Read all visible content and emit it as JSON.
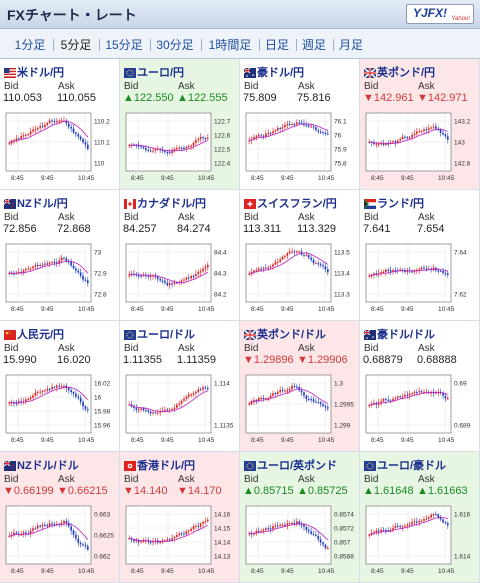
{
  "app": {
    "title": "FXチャート・レート",
    "logo": "YJFX!",
    "logo_sub": "Yahoo!"
  },
  "tabs": [
    {
      "label": "1分足",
      "active": false
    },
    {
      "label": "5分足",
      "active": true
    },
    {
      "label": "15分足",
      "active": false
    },
    {
      "label": "30分足",
      "active": false
    },
    {
      "label": "1時間足",
      "active": false
    },
    {
      "label": "日足",
      "active": false
    },
    {
      "label": "週足",
      "active": false
    },
    {
      "label": "月足",
      "active": false
    }
  ],
  "labels": {
    "bid": "Bid",
    "ask": "Ask"
  },
  "colors": {
    "up": "#1b8a22",
    "down": "#d23a3a",
    "candle_up": "#d22",
    "candle_down": "#2240c0",
    "ma": "#c020c0"
  },
  "pairs": [
    {
      "name": "米ドル/円",
      "flag": "us-flag-icon",
      "bid": "110.053",
      "ask": "110.055",
      "trend": "none",
      "yticks": [
        "110.2",
        "110.1",
        "110"
      ],
      "xticks": [
        "8:45",
        "9:45",
        "10:45"
      ]
    },
    {
      "name": "ユーロ/円",
      "flag": "eu-flag-icon",
      "bid": "▲122.550",
      "ask": "▲122.555",
      "trend": "up",
      "yticks": [
        "122.7",
        "122.6",
        "122.5",
        "122.4"
      ],
      "xticks": [
        "8:45",
        "9:45",
        "10:45"
      ]
    },
    {
      "name": "豪ドル/円",
      "flag": "au-flag-icon",
      "bid": "75.809",
      "ask": "75.816",
      "trend": "none",
      "yticks": [
        "76.1",
        "76",
        "75.9",
        "75.8"
      ],
      "xticks": [
        "8:45",
        "9:45",
        "10:45"
      ]
    },
    {
      "name": "英ポンド/円",
      "flag": "gb-flag-icon",
      "bid": "▼142.961",
      "ask": "▼142.971",
      "trend": "down",
      "yticks": [
        "143.2",
        "143",
        "142.8"
      ],
      "xticks": [
        "8:45",
        "9:45",
        "10:45"
      ]
    },
    {
      "name": "NZドル/円",
      "flag": "nz-flag-icon",
      "bid": "72.856",
      "ask": "72.868",
      "trend": "none",
      "yticks": [
        "73",
        "72.9",
        "72.8"
      ],
      "xticks": [
        "8:45",
        "9:45",
        "10:45"
      ]
    },
    {
      "name": "カナダドル/円",
      "flag": "ca-flag-icon",
      "bid": "84.257",
      "ask": "84.274",
      "trend": "none",
      "yticks": [
        "84.4",
        "84.3",
        "84.2"
      ],
      "xticks": [
        "8:45",
        "9:45",
        "10:45"
      ]
    },
    {
      "name": "スイスフラン/円",
      "flag": "ch-flag-icon",
      "bid": "113.311",
      "ask": "113.329",
      "trend": "none",
      "yticks": [
        "113.5",
        "113.4",
        "113.3"
      ],
      "xticks": [
        "8:45",
        "9:45",
        "10:45"
      ]
    },
    {
      "name": "ランド/円",
      "flag": "za-flag-icon",
      "bid": "7.641",
      "ask": "7.654",
      "trend": "none",
      "yticks": [
        "7.64",
        "7.62"
      ],
      "xticks": [
        "8:45",
        "9:45",
        "10:45"
      ]
    },
    {
      "name": "人民元/円",
      "flag": "cn-flag-icon",
      "bid": "15.990",
      "ask": "16.020",
      "trend": "none",
      "yticks": [
        "16.02",
        "16",
        "15.98",
        "15.96"
      ],
      "xticks": [
        "8:45",
        "9:45",
        "10:45"
      ]
    },
    {
      "name": "ユーロ/ドル",
      "flag": "eu-flag-icon",
      "bid": "1.11355",
      "ask": "1.11359",
      "trend": "none",
      "yticks": [
        "1.114",
        "1.1135"
      ],
      "xticks": [
        "8:45",
        "9:45",
        "10:45"
      ]
    },
    {
      "name": "英ポンド/ドル",
      "flag": "gb-flag-icon",
      "bid": "▼1.29896",
      "ask": "▼1.29906",
      "trend": "down",
      "yticks": [
        "1.3",
        "1.2995",
        "1.299"
      ],
      "xticks": [
        "8:45",
        "9:45",
        "10:45"
      ]
    },
    {
      "name": "豪ドル/ドル",
      "flag": "au-flag-icon",
      "bid": "0.68879",
      "ask": "0.68888",
      "trend": "none",
      "yticks": [
        "0.69",
        "0.689"
      ],
      "xticks": [
        "8:45",
        "9:45",
        "10:45"
      ]
    },
    {
      "name": "NZドル/ドル",
      "flag": "nz-flag-icon",
      "bid": "▼0.66199",
      "ask": "▼0.66215",
      "trend": "down",
      "yticks": [
        "0.663",
        "0.6625",
        "0.662"
      ],
      "xticks": [
        "8:45",
        "9:45",
        "10:45"
      ]
    },
    {
      "name": "香港ドル/円",
      "flag": "hk-flag-icon",
      "bid": "▼14.140",
      "ask": "▼14.170",
      "trend": "down",
      "yticks": [
        "14.16",
        "14.15",
        "14.14",
        "14.13"
      ],
      "xticks": [
        "8:45",
        "9:45",
        "10:45"
      ]
    },
    {
      "name": "ユーロ/英ポンド",
      "flag": "eu-flag-icon",
      "bid": "▲0.85715",
      "ask": "▲0.85725",
      "trend": "up",
      "yticks": [
        "0.8574",
        "0.8572",
        "0.857",
        "0.8568"
      ],
      "xticks": [
        "8:45",
        "9:45",
        "10:45"
      ]
    },
    {
      "name": "ユーロ/豪ドル",
      "flag": "eu-flag-icon",
      "bid": "▲1.61648",
      "ask": "▲1.61663",
      "trend": "up",
      "yticks": [
        "1.616",
        "1.614"
      ],
      "xticks": [
        "8:45",
        "9:45",
        "10:45"
      ]
    }
  ]
}
